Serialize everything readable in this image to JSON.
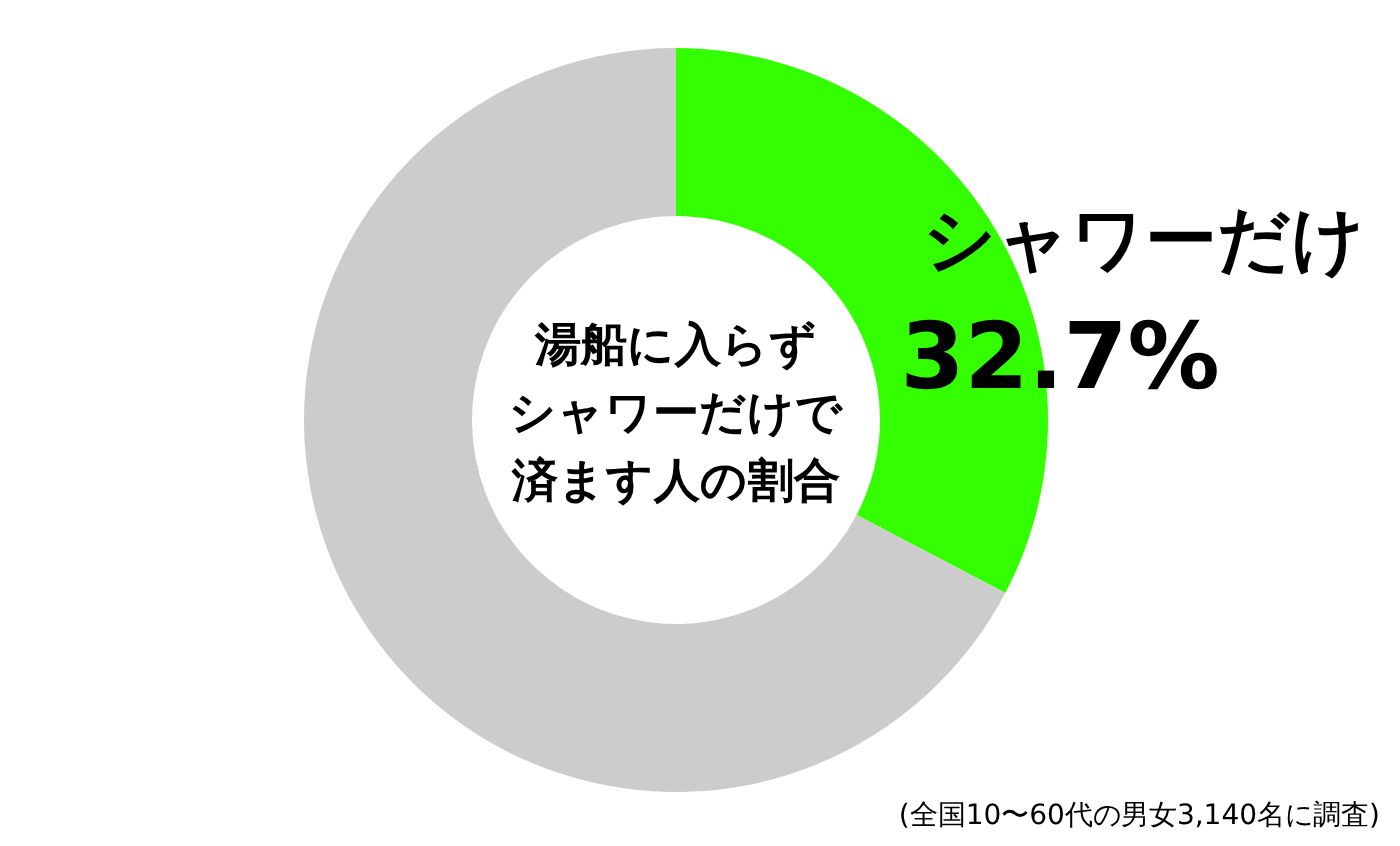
{
  "chart_data": {
    "type": "donut",
    "title": "湯船に入らずシャワーだけで済ます人の割合",
    "categories": [
      "シャワーだけ",
      null
    ],
    "values": [
      32.7,
      67.3
    ],
    "colors": [
      "#33ff00",
      "#cccccc"
    ],
    "value_labels": [
      "32.7%",
      null
    ],
    "annotations": [
      "(全国10〜60代の男女3,140名に調査)"
    ]
  }
}
